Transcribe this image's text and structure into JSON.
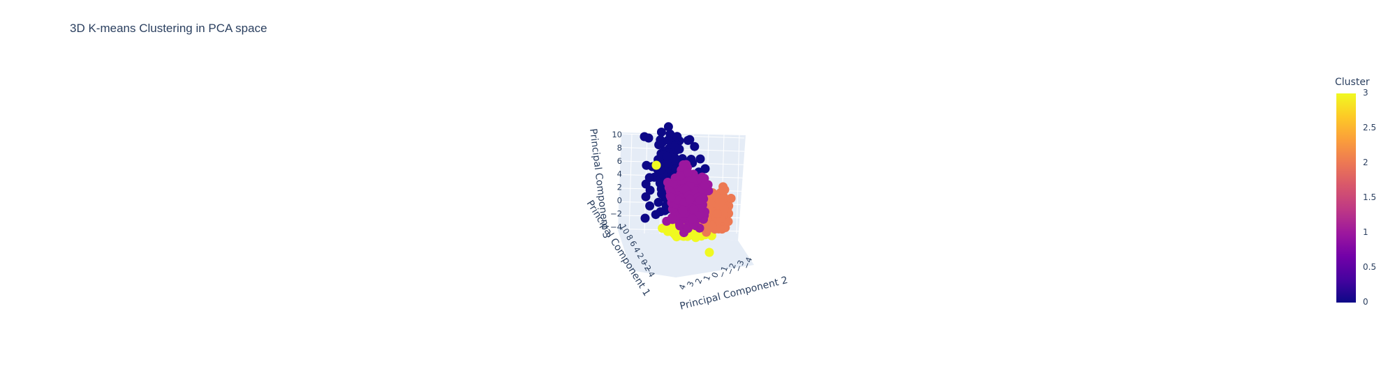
{
  "chart_data": {
    "type": "scatter",
    "title": "3D K-means Clustering in PCA space",
    "axes": {
      "x": {
        "label": "Principal Component 1",
        "ticks": [
          "10",
          "8",
          "6",
          "4",
          "2",
          "0",
          "−2",
          "−4"
        ]
      },
      "y": {
        "label": "Principal Component 2",
        "ticks": [
          "4",
          "3",
          "2",
          "1",
          "0",
          "−1",
          "−2",
          "−3",
          "−4"
        ]
      },
      "z": {
        "label": "Principal Component 3",
        "ticks": [
          "10",
          "8",
          "6",
          "4",
          "2",
          "0",
          "−2",
          "−4"
        ],
        "range": [
          -4,
          10
        ]
      }
    },
    "colorbar": {
      "title": "Cluster",
      "ticks": [
        "3",
        "2.5",
        "2",
        "1.5",
        "1",
        "0.5",
        "0"
      ],
      "range": [
        0,
        3
      ],
      "colorscale": [
        "#0d0887",
        "#46039f",
        "#7201a8",
        "#9c179e",
        "#bd3786",
        "#d8576b",
        "#ed7953",
        "#fb9f3a",
        "#fdca26",
        "#f0f921"
      ]
    },
    "clusters": [
      {
        "cluster": 0,
        "color": "#0d0887"
      },
      {
        "cluster": 1,
        "color": "#9c179e"
      },
      {
        "cluster": 2,
        "color": "#ed7953"
      },
      {
        "cluster": 3,
        "color": "#f0f921"
      }
    ]
  }
}
